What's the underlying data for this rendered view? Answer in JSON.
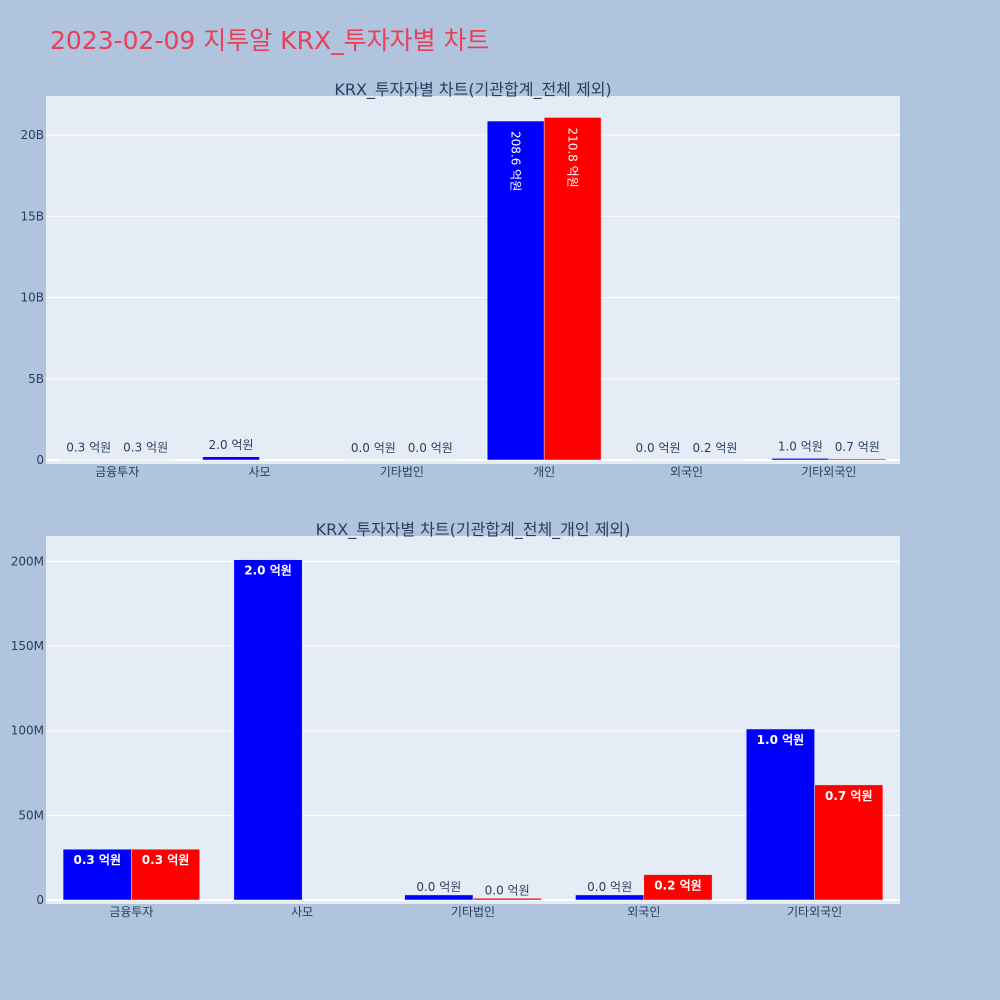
{
  "page_title": "2023-02-09 지투알 KRX_투자자별 차트",
  "colors": {
    "background": "#b0c4de",
    "plot_bg": "#e5ecf6",
    "title": "#e8405a",
    "series_a": "#0000ff",
    "series_b": "#ff0000"
  },
  "chart_data": [
    {
      "type": "bar",
      "title": "KRX_투자자별 차트(기관합계_전체 제외)",
      "categories": [
        "금융투자",
        "사모",
        "기타법인",
        "개인",
        "외국인",
        "기타외국인"
      ],
      "series": [
        {
          "values": [
            30000000,
            200000000,
            3000000,
            20860000000,
            3000000,
            100000000
          ],
          "labels": [
            "0.3 억원",
            "2.0 억원",
            "0.0 억원",
            "208.6 억원",
            "0.0 억원",
            "1.0 억원"
          ],
          "color": "#0000ff"
        },
        {
          "values": [
            30000000,
            0,
            1000000,
            21080000000,
            15000000,
            67000000
          ],
          "labels": [
            "0.3 억원",
            "",
            "0.0 억원",
            "210.8 억원",
            "0.2 억원",
            "0.7 억원"
          ],
          "color": "#ff0000"
        }
      ],
      "ylim": [
        0,
        22400000000
      ],
      "yticks": [
        0,
        5000000000,
        10000000000,
        15000000000,
        20000000000
      ],
      "ytick_labels": [
        "0",
        "5B",
        "10B",
        "15B",
        "20B"
      ],
      "grid": true
    },
    {
      "type": "bar",
      "title": "KRX_투자자별 차트(기관합계_전체_개인 제외)",
      "categories": [
        "금융투자",
        "사모",
        "기타법인",
        "외국인",
        "기타외국인"
      ],
      "series": [
        {
          "values": [
            30000000,
            201000000,
            3000000,
            3000000,
            101000000
          ],
          "labels": [
            "0.3 억원",
            "2.0 억원",
            "0.0 억원",
            "0.0 억원",
            "1.0 억원"
          ],
          "color": "#0000ff"
        },
        {
          "values": [
            30000000,
            0,
            1000000,
            15000000,
            68000000
          ],
          "labels": [
            "0.3 억원",
            "",
            "0.0 억원",
            "0.2 억원",
            "0.7 억원"
          ],
          "color": "#ff0000"
        }
      ],
      "ylim": [
        0,
        215000000
      ],
      "yticks": [
        0,
        50000000,
        100000000,
        150000000,
        200000000
      ],
      "ytick_labels": [
        "0",
        "50M",
        "100M",
        "150M",
        "200M"
      ],
      "grid": true
    }
  ]
}
